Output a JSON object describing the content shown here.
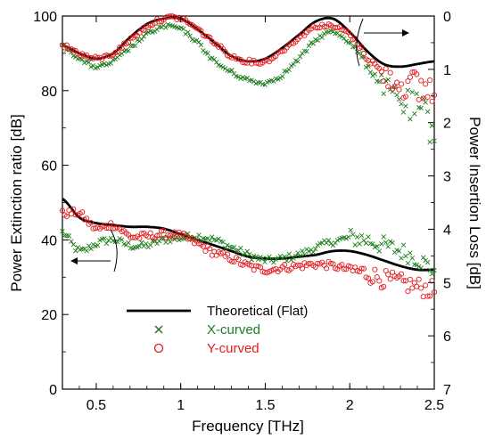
{
  "chart_data": {
    "type": "scatter",
    "title": "",
    "xlabel": "Frequency [THz]",
    "ylabel_left": "Power Extinction ratio [dB]",
    "ylabel_right": "Power Insertion Loss [dB]",
    "xlim": [
      0.3,
      2.5
    ],
    "ylim_left": [
      0,
      100
    ],
    "ylim_right": [
      0,
      7
    ],
    "right_axis_inverted": true,
    "grid": false,
    "legend_position": "lower-left inside plot",
    "x_ticks": [
      "0.5",
      "1",
      "1.5",
      "2",
      "2.5"
    ],
    "y_ticks_left": [
      "0",
      "20",
      "40",
      "60",
      "80",
      "100"
    ],
    "y_ticks_right": [
      "0",
      "1",
      "2",
      "3",
      "4",
      "5",
      "6",
      "7"
    ],
    "legend": [
      {
        "label": "Theoretical (Flat)",
        "marker": "line",
        "color": "#000000"
      },
      {
        "label": "X-curved",
        "marker": "x",
        "color": "#1a7d1a"
      },
      {
        "label": "Y-curved",
        "marker": "circle",
        "color": "#e41a1c"
      }
    ],
    "colors": {
      "theory": "#000000",
      "x_curved": "#1a7d1a",
      "y_curved": "#e41a1c"
    },
    "series": [
      {
        "name": "Theoretical (Flat)",
        "axis": "left",
        "kind": "line",
        "x": [
          0.3,
          0.4,
          0.5,
          0.6,
          0.7,
          0.8,
          0.9,
          1.0,
          1.1,
          1.2,
          1.3,
          1.4,
          1.5,
          1.6,
          1.7,
          1.8,
          1.9,
          2.0,
          2.1,
          2.2,
          2.3,
          2.4,
          2.5
        ],
        "y": [
          51,
          46,
          44.5,
          44,
          43.5,
          43.5,
          43,
          41.5,
          40,
          38.5,
          37,
          35.5,
          35,
          35,
          35.5,
          36,
          37,
          37,
          36,
          34.5,
          33,
          32,
          32
        ]
      },
      {
        "name": "X-curved",
        "axis": "left",
        "kind": "x",
        "x": [
          0.3,
          0.4,
          0.5,
          0.6,
          0.7,
          0.8,
          0.9,
          1.0,
          1.1,
          1.2,
          1.3,
          1.4,
          1.5,
          1.6,
          1.7,
          1.8,
          1.9,
          2.0,
          2.1,
          2.2,
          2.3,
          2.4,
          2.5
        ],
        "y": [
          42,
          37,
          39,
          40,
          38.5,
          38.5,
          40,
          40.5,
          41,
          40,
          38,
          36,
          34.5,
          35,
          36,
          38,
          39.5,
          40.5,
          40,
          38.5,
          37,
          35,
          32
        ]
      },
      {
        "name": "Y-curved",
        "axis": "left",
        "kind": "circle",
        "x": [
          0.3,
          0.4,
          0.5,
          0.6,
          0.7,
          0.8,
          0.9,
          1.0,
          1.1,
          1.2,
          1.3,
          1.4,
          1.5,
          1.6,
          1.7,
          1.8,
          1.9,
          2.0,
          2.1,
          2.2,
          2.3,
          2.4,
          2.5
        ],
        "y": [
          47,
          47,
          43,
          44,
          41,
          41,
          41.5,
          41,
          39,
          36.5,
          35,
          33,
          32,
          32.5,
          33,
          33.5,
          33,
          32,
          31,
          29.5,
          28.5,
          27.5,
          26.5
        ]
      },
      {
        "name": "Theoretical (Flat)",
        "axis": "right",
        "kind": "line",
        "x": [
          0.3,
          0.4,
          0.5,
          0.6,
          0.7,
          0.8,
          0.9,
          1.0,
          1.1,
          1.2,
          1.3,
          1.4,
          1.5,
          1.6,
          1.7,
          1.8,
          1.9,
          2.0,
          2.1,
          2.2,
          2.3,
          2.4,
          2.5
        ],
        "y": [
          0.55,
          0.7,
          0.8,
          0.7,
          0.4,
          0.15,
          0.05,
          0.05,
          0.25,
          0.5,
          0.75,
          0.85,
          0.8,
          0.6,
          0.35,
          0.1,
          0.05,
          0.3,
          0.65,
          0.9,
          0.95,
          0.9,
          0.85
        ]
      },
      {
        "name": "X-curved",
        "axis": "right",
        "kind": "x",
        "x": [
          0.3,
          0.4,
          0.5,
          0.6,
          0.7,
          0.8,
          0.9,
          1.0,
          1.1,
          1.2,
          1.3,
          1.4,
          1.5,
          1.6,
          1.7,
          1.8,
          1.9,
          2.0,
          2.1,
          2.2,
          2.3,
          2.4,
          2.5
        ],
        "y": [
          0.55,
          0.8,
          0.95,
          0.85,
          0.6,
          0.35,
          0.2,
          0.25,
          0.5,
          0.85,
          1.05,
          1.2,
          1.25,
          1.1,
          0.8,
          0.45,
          0.3,
          0.5,
          0.9,
          1.3,
          1.6,
          1.8,
          2.0
        ]
      },
      {
        "name": "Y-curved",
        "axis": "right",
        "kind": "circle",
        "x": [
          0.3,
          0.4,
          0.5,
          0.6,
          0.7,
          0.8,
          0.9,
          1.0,
          1.1,
          1.2,
          1.3,
          1.4,
          1.5,
          1.6,
          1.7,
          1.8,
          1.9,
          2.0,
          2.1,
          2.2,
          2.3,
          2.4,
          2.5
        ],
        "y": [
          0.55,
          0.7,
          0.8,
          0.7,
          0.45,
          0.2,
          0.05,
          0.05,
          0.25,
          0.5,
          0.75,
          0.85,
          0.85,
          0.65,
          0.4,
          0.2,
          0.2,
          0.35,
          0.75,
          1.1,
          1.25,
          1.35,
          1.4
        ]
      }
    ]
  }
}
